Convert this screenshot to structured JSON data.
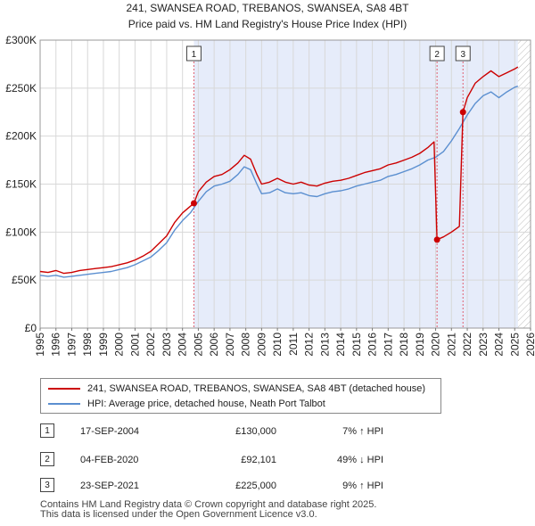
{
  "chart_data": {
    "type": "line",
    "title": "241, SWANSEA ROAD, TREBANOS, SWANSEA, SA8 4BT",
    "subtitle": "Price paid vs. HM Land Registry's House Price Index (HPI)",
    "xlim": [
      1995,
      2026
    ],
    "ylim": [
      0,
      300000
    ],
    "y_ticks": [
      0,
      50000,
      100000,
      150000,
      200000,
      250000,
      300000
    ],
    "y_tick_labels": [
      "£0",
      "£50K",
      "£100K",
      "£150K",
      "£200K",
      "£250K",
      "£300K"
    ],
    "x_ticks": [
      1995,
      1996,
      1997,
      1998,
      1999,
      2000,
      2001,
      2002,
      2003,
      2004,
      2005,
      2006,
      2007,
      2008,
      2009,
      2010,
      2011,
      2012,
      2013,
      2014,
      2015,
      2016,
      2017,
      2018,
      2019,
      2020,
      2021,
      2022,
      2023,
      2024,
      2025,
      2026
    ],
    "x_tick_labels": [
      "1995",
      "1996",
      "1997",
      "1998",
      "1999",
      "2000",
      "2001",
      "2002",
      "2003",
      "2004",
      "2005",
      "2006",
      "2007",
      "2008",
      "2009",
      "2010",
      "2011",
      "2012",
      "2013",
      "2014",
      "2015",
      "2016",
      "2017",
      "2018",
      "2019",
      "2020",
      "2021",
      "2022",
      "2023",
      "2024",
      "2025",
      "2026"
    ],
    "shaded_range": [
      2004.72,
      2025.2
    ],
    "future_hatch_start": 2025.2,
    "series": [
      {
        "name": "241, SWANSEA ROAD, TREBANOS, SWANSEA, SA8 4BT (detached house)",
        "color": "#cc0000",
        "x": [
          1995.0,
          1995.5,
          1996.0,
          1996.5,
          1997.0,
          1997.5,
          1998.0,
          1998.5,
          1999.0,
          1999.5,
          2000.0,
          2000.5,
          2001.0,
          2001.5,
          2002.0,
          2002.5,
          2003.0,
          2003.5,
          2004.0,
          2004.5,
          2004.72,
          2005.0,
          2005.5,
          2006.0,
          2006.5,
          2007.0,
          2007.5,
          2007.9,
          2008.3,
          2008.7,
          2009.0,
          2009.5,
          2010.0,
          2010.5,
          2011.0,
          2011.5,
          2012.0,
          2012.5,
          2013.0,
          2013.5,
          2014.0,
          2014.5,
          2015.0,
          2015.5,
          2016.0,
          2016.5,
          2017.0,
          2017.5,
          2018.0,
          2018.5,
          2019.0,
          2019.5,
          2019.9,
          2020.09,
          2020.5,
          2021.0,
          2021.5,
          2021.73,
          2022.0,
          2022.5,
          2023.0,
          2023.5,
          2024.0,
          2024.5,
          2025.0,
          2025.2
        ],
        "values": [
          59000,
          58000,
          60000,
          57000,
          58000,
          60000,
          61000,
          62000,
          63000,
          64000,
          66000,
          68000,
          71000,
          75000,
          80000,
          88000,
          96000,
          110000,
          120000,
          127000,
          130000,
          142000,
          152000,
          158000,
          160000,
          165000,
          172000,
          180000,
          176000,
          160000,
          150000,
          152000,
          156000,
          152000,
          150000,
          152000,
          149000,
          148000,
          151000,
          153000,
          154000,
          156000,
          159000,
          162000,
          164000,
          166000,
          170000,
          172000,
          175000,
          178000,
          182000,
          188000,
          194000,
          92101,
          95000,
          100000,
          106000,
          225000,
          240000,
          255000,
          262000,
          268000,
          262000,
          266000,
          270000,
          272000
        ]
      },
      {
        "name": "HPI: Average price, detached house, Neath Port Talbot",
        "color": "#5b8fd0",
        "x": [
          1995.0,
          1995.5,
          1996.0,
          1996.5,
          1997.0,
          1997.5,
          1998.0,
          1998.5,
          1999.0,
          1999.5,
          2000.0,
          2000.5,
          2001.0,
          2001.5,
          2002.0,
          2002.5,
          2003.0,
          2003.5,
          2004.0,
          2004.5,
          2005.0,
          2005.5,
          2006.0,
          2006.5,
          2007.0,
          2007.5,
          2007.9,
          2008.3,
          2008.7,
          2009.0,
          2009.5,
          2010.0,
          2010.5,
          2011.0,
          2011.5,
          2012.0,
          2012.5,
          2013.0,
          2013.5,
          2014.0,
          2014.5,
          2015.0,
          2015.5,
          2016.0,
          2016.5,
          2017.0,
          2017.5,
          2018.0,
          2018.5,
          2019.0,
          2019.5,
          2020.0,
          2020.5,
          2021.0,
          2021.5,
          2022.0,
          2022.5,
          2023.0,
          2023.5,
          2024.0,
          2024.5,
          2025.0,
          2025.2
        ],
        "values": [
          55000,
          54000,
          55000,
          53000,
          54000,
          55000,
          56000,
          57000,
          58000,
          59000,
          61000,
          63000,
          66000,
          70000,
          74000,
          81000,
          89000,
          102000,
          112000,
          120000,
          132000,
          142000,
          148000,
          150000,
          153000,
          160000,
          168000,
          165000,
          150000,
          140000,
          141000,
          145000,
          141000,
          140000,
          141000,
          138000,
          137000,
          140000,
          142000,
          143000,
          145000,
          148000,
          150000,
          152000,
          154000,
          158000,
          160000,
          163000,
          166000,
          170000,
          175000,
          178000,
          184000,
          195000,
          208000,
          222000,
          234000,
          242000,
          246000,
          240000,
          246000,
          251000,
          252000
        ]
      }
    ],
    "sales": [
      {
        "label": "1",
        "x": 2004.72,
        "y": 130000
      },
      {
        "label": "2",
        "x": 2020.09,
        "y": 92101
      },
      {
        "label": "3",
        "x": 2021.73,
        "y": 225000
      }
    ]
  },
  "legend": {
    "property_label": "241, SWANSEA ROAD, TREBANOS, SWANSEA, SA8 4BT (detached house)",
    "hpi_label": "HPI: Average price, detached house, Neath Port Talbot"
  },
  "transactions": [
    {
      "num": "1",
      "date": "17-SEP-2004",
      "price": "£130,000",
      "hpi": "7% ↑ HPI"
    },
    {
      "num": "2",
      "date": "04-FEB-2020",
      "price": "£92,101",
      "hpi": "49% ↓ HPI"
    },
    {
      "num": "3",
      "date": "23-SEP-2021",
      "price": "£225,000",
      "hpi": "9% ↑ HPI"
    }
  ],
  "footer": {
    "line1": "Contains HM Land Registry data © Crown copyright and database right 2025.",
    "line2": "This data is licensed under the Open Government Licence v3.0."
  },
  "colors": {
    "property": "#cc0000",
    "hpi": "#5b8fd0",
    "shade": "#e6ecfa",
    "grid": "#d8d8d8",
    "marker_line": "#e06070"
  }
}
